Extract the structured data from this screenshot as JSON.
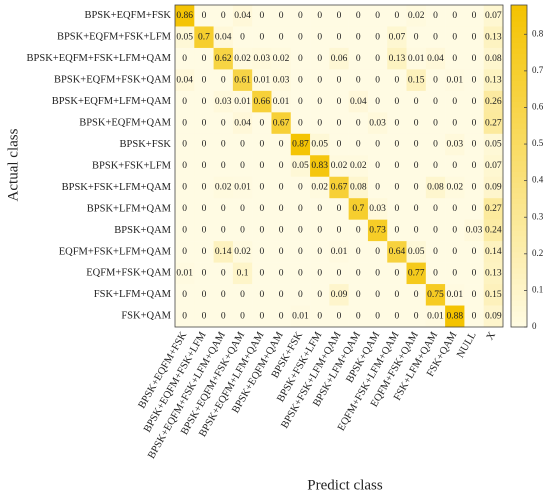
{
  "chart_data": {
    "type": "heatmap",
    "x_label": "Predict class",
    "y_label": "Actual class",
    "x_categories": [
      "BPSK+EQFM+FSK",
      "BPSK+EQFM+FSK+LFM",
      "BPSK+EQFM+FSK+LFM+QAM",
      "BPSK+EQFM+FSK+QAM",
      "BPSK+EQFM+LFM+QAM",
      "BPSK+EQFM+QAM",
      "BPSK+FSK",
      "BPSK+FSK+LFM",
      "BPSK+FSK+LFM+QAM",
      "BPSK+LFM+QAM",
      "BPSK+QAM",
      "EQFM+FSK+LFM+QAM",
      "EQFM+FSK+QAM",
      "FSK+LFM+QAM",
      "FSK+QAM",
      "NULL",
      "X"
    ],
    "y_categories": [
      "BPSK+EQFM+FSK",
      "BPSK+EQFM+FSK+LFM",
      "BPSK+EQFM+FSK+LFM+QAM",
      "BPSK+EQFM+FSK+QAM",
      "BPSK+EQFM+LFM+QAM",
      "BPSK+EQFM+QAM",
      "BPSK+FSK",
      "BPSK+FSK+LFM",
      "BPSK+FSK+LFM+QAM",
      "BPSK+LFM+QAM",
      "BPSK+QAM",
      "EQFM+FSK+LFM+QAM",
      "EQFM+FSK+QAM",
      "FSK+LFM+QAM",
      "FSK+QAM"
    ],
    "values": [
      [
        0.86,
        0,
        0,
        0.04,
        0,
        0,
        0,
        0,
        0,
        0,
        0,
        0,
        0.02,
        0,
        0,
        0,
        0.07
      ],
      [
        0.05,
        0.7,
        0.04,
        0,
        0,
        0,
        0,
        0,
        0,
        0,
        0,
        0.07,
        0,
        0,
        0,
        0,
        0.13
      ],
      [
        0,
        0,
        0.62,
        0.02,
        0.03,
        0.02,
        0,
        0,
        0.06,
        0,
        0,
        0.13,
        0.01,
        0.04,
        0,
        0,
        0.08
      ],
      [
        0.04,
        0,
        0,
        0.61,
        0.01,
        0.03,
        0,
        0,
        0,
        0,
        0,
        0,
        0.15,
        0,
        0.01,
        0,
        0.13
      ],
      [
        0,
        0,
        0.03,
        0.01,
        0.66,
        0.01,
        0,
        0,
        0,
        0.04,
        0,
        0,
        0,
        0,
        0,
        0,
        0.26
      ],
      [
        0,
        0,
        0,
        0.04,
        0,
        0.67,
        0,
        0,
        0,
        0,
        0.03,
        0,
        0,
        0,
        0,
        0,
        0.27
      ],
      [
        0,
        0,
        0,
        0,
        0,
        0,
        0.87,
        0.05,
        0,
        0,
        0,
        0,
        0,
        0,
        0.03,
        0,
        0.05
      ],
      [
        0,
        0,
        0,
        0,
        0,
        0,
        0.05,
        0.83,
        0.02,
        0.02,
        0,
        0,
        0,
        0,
        0,
        0,
        0.07
      ],
      [
        0,
        0,
        0.02,
        0.01,
        0,
        0,
        0,
        0.02,
        0.67,
        0.08,
        0,
        0,
        0,
        0.08,
        0.02,
        0,
        0.09
      ],
      [
        0,
        0,
        0,
        0,
        0,
        0,
        0,
        0,
        0,
        0.7,
        0.03,
        0,
        0,
        0,
        0,
        0,
        0.27
      ],
      [
        0,
        0,
        0,
        0,
        0,
        0,
        0,
        0,
        0,
        0,
        0.73,
        0,
        0,
        0,
        0,
        0.03,
        0.24
      ],
      [
        0,
        0,
        0.14,
        0.02,
        0,
        0,
        0,
        0,
        0.01,
        0,
        0,
        0.64,
        0.05,
        0,
        0,
        0,
        0.14
      ],
      [
        0.01,
        0,
        0,
        0.1,
        0,
        0,
        0,
        0,
        0,
        0,
        0,
        0,
        0.77,
        0,
        0,
        0,
        0.13
      ],
      [
        0,
        0,
        0,
        0,
        0,
        0,
        0,
        0,
        0.09,
        0,
        0,
        0,
        0,
        0.75,
        0.01,
        0,
        0.15
      ],
      [
        0,
        0,
        0,
        0,
        0,
        0,
        0.01,
        0,
        0,
        0,
        0,
        0,
        0,
        0.01,
        0.88,
        0,
        0.09
      ]
    ],
    "colors": [
      "#fffbe3",
      "#f4c300"
    ],
    "clim": [
      0,
      0.88
    ],
    "cticks": [
      0,
      0.1,
      0.2,
      0.3,
      0.4,
      0.5,
      0.6,
      0.7,
      0.8
    ]
  }
}
